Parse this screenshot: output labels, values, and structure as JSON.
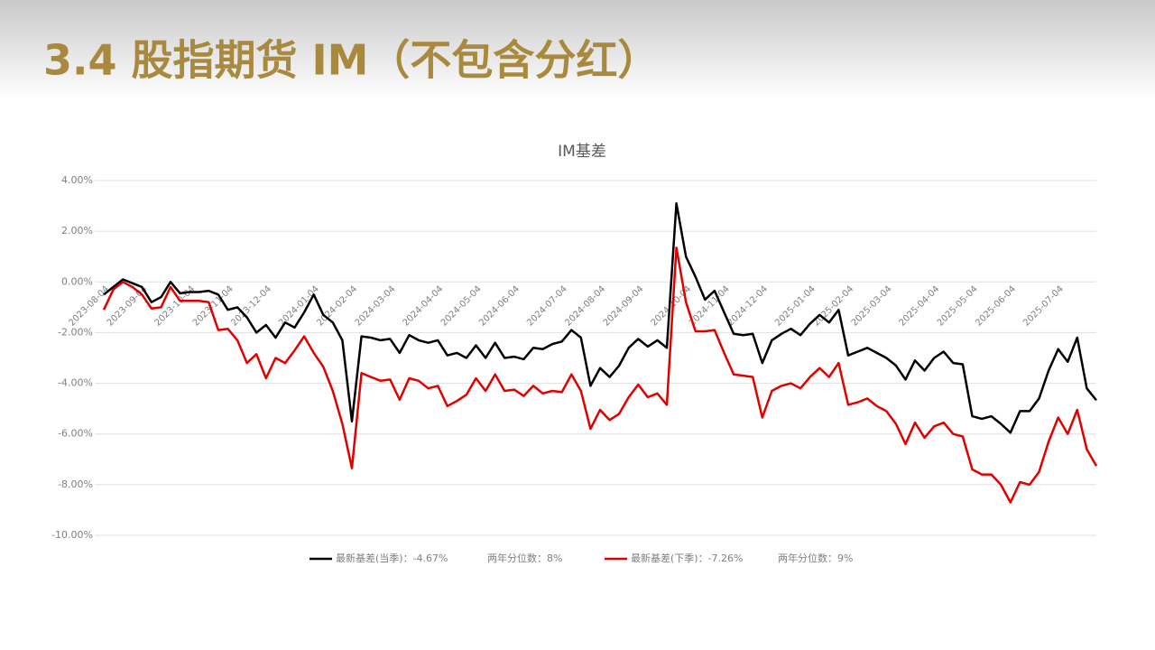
{
  "header": {
    "title": "3.4 股指期货 IM（不包含分红）"
  },
  "chart_data": {
    "type": "line",
    "title": "IM基差",
    "categories": [
      "2023-08-04",
      null,
      null,
      null,
      "2023-09-04",
      null,
      null,
      null,
      null,
      "2023-10-04",
      null,
      null,
      null,
      "2023-11-04",
      null,
      null,
      null,
      "2023-12-04",
      null,
      null,
      null,
      null,
      "2024-01-04",
      null,
      null,
      null,
      "2024-02-04",
      null,
      null,
      null,
      "2024-03-04",
      null,
      null,
      null,
      null,
      "2024-04-04",
      null,
      null,
      null,
      "2024-05-04",
      null,
      null,
      null,
      "2024-06-04",
      null,
      null,
      null,
      null,
      "2024-07-04",
      null,
      null,
      null,
      "2024-08-04",
      null,
      null,
      null,
      "2024-09-04",
      null,
      null,
      null,
      null,
      "2024-10-04",
      null,
      null,
      null,
      "2024-11-04",
      null,
      null,
      null,
      "2024-12-04",
      null,
      null,
      null,
      null,
      "2025-01-04",
      null,
      null,
      null,
      "2025-02-04",
      null,
      null,
      null,
      "2025-03-04",
      null,
      null,
      null,
      null,
      "2025-04-04",
      null,
      null,
      null,
      "2025-05-04",
      null,
      null,
      null,
      "2025-06-04",
      null,
      null,
      null,
      null,
      "2025-07-04",
      null,
      null,
      null,
      null
    ],
    "series": [
      {
        "name": "最新基差(当季)：-4.67%",
        "color": "#000000",
        "values": [
          -0.5,
          -0.2,
          0.1,
          -0.05,
          -0.2,
          -0.8,
          -0.6,
          0.0,
          -0.45,
          -0.4,
          -0.4,
          -0.35,
          -0.5,
          -1.1,
          -1.0,
          -1.4,
          -2.0,
          -1.7,
          -2.2,
          -1.6,
          -1.8,
          -1.2,
          -0.5,
          -1.3,
          -1.6,
          -2.3,
          -5.5,
          -2.15,
          -2.2,
          -2.3,
          -2.25,
          -2.8,
          -2.1,
          -2.3,
          -2.4,
          -2.3,
          -2.9,
          -2.8,
          -3.0,
          -2.5,
          -3.0,
          -2.4,
          -3.0,
          -2.95,
          -3.05,
          -2.6,
          -2.65,
          -2.45,
          -2.35,
          -1.9,
          -2.2,
          -4.1,
          -3.4,
          -3.75,
          -3.3,
          -2.6,
          -2.25,
          -2.55,
          -2.3,
          -2.6,
          3.1,
          1.0,
          0.2,
          -0.7,
          -0.35,
          -1.2,
          -2.05,
          -2.1,
          -2.05,
          -3.2,
          -2.3,
          -2.05,
          -1.85,
          -2.1,
          -1.65,
          -1.3,
          -1.6,
          -1.1,
          -2.9,
          -2.75,
          -2.6,
          -2.8,
          -3.0,
          -3.3,
          -3.85,
          -3.1,
          -3.5,
          -3.0,
          -2.75,
          -3.2,
          -3.25,
          -5.3,
          -5.4,
          -5.3,
          -5.6,
          -5.95,
          -5.1,
          -5.1,
          -4.6,
          -3.5,
          -2.65,
          -3.15,
          -2.2,
          -4.2,
          -4.67
        ]
      },
      {
        "name": "最新基差(下季)：-7.26%",
        "color": "#e00000",
        "values": [
          -1.1,
          -0.3,
          0.0,
          -0.2,
          -0.5,
          -1.05,
          -1.0,
          -0.2,
          -0.75,
          -0.75,
          -0.75,
          -0.8,
          -1.9,
          -1.85,
          -2.3,
          -3.2,
          -2.85,
          -3.8,
          -3.0,
          -3.2,
          -2.7,
          -2.15,
          -2.8,
          -3.35,
          -4.3,
          -5.6,
          -7.35,
          -3.6,
          -3.75,
          -3.9,
          -3.85,
          -4.65,
          -3.8,
          -3.9,
          -4.2,
          -4.1,
          -4.9,
          -4.7,
          -4.45,
          -3.8,
          -4.3,
          -3.65,
          -4.3,
          -4.25,
          -4.5,
          -4.1,
          -4.4,
          -4.3,
          -4.35,
          -3.65,
          -4.3,
          -5.8,
          -5.05,
          -5.45,
          -5.2,
          -4.55,
          -4.05,
          -4.55,
          -4.4,
          -4.85,
          1.35,
          -0.8,
          -1.95,
          -1.95,
          -1.9,
          -2.8,
          -3.65,
          -3.7,
          -3.75,
          -5.35,
          -4.3,
          -4.1,
          -4.0,
          -4.2,
          -3.75,
          -3.4,
          -3.75,
          -3.2,
          -4.85,
          -4.75,
          -4.6,
          -4.9,
          -5.1,
          -5.6,
          -6.4,
          -5.55,
          -6.15,
          -5.7,
          -5.55,
          -6.0,
          -6.1,
          -7.4,
          -7.6,
          -7.6,
          -8.0,
          -8.7,
          -7.9,
          -8.0,
          -7.5,
          -6.3,
          -5.35,
          -6.0,
          -5.05,
          -6.6,
          -7.26
        ]
      }
    ],
    "legend_notes": [
      "两年分位数：8%",
      "两年分位数：9%"
    ],
    "ylim": [
      -10,
      4
    ],
    "yticks": [
      {
        "value": 4,
        "label": "4.00%"
      },
      {
        "value": 2,
        "label": "2.00%"
      },
      {
        "value": 0,
        "label": "0.00%"
      },
      {
        "value": -2,
        "label": "-2.00%"
      },
      {
        "value": -4,
        "label": "-4.00%"
      },
      {
        "value": -6,
        "label": "-6.00%"
      },
      {
        "value": -8,
        "label": "-8.00%"
      },
      {
        "value": -10,
        "label": "-10.00%"
      }
    ],
    "grid": true,
    "legend": "bottom"
  }
}
